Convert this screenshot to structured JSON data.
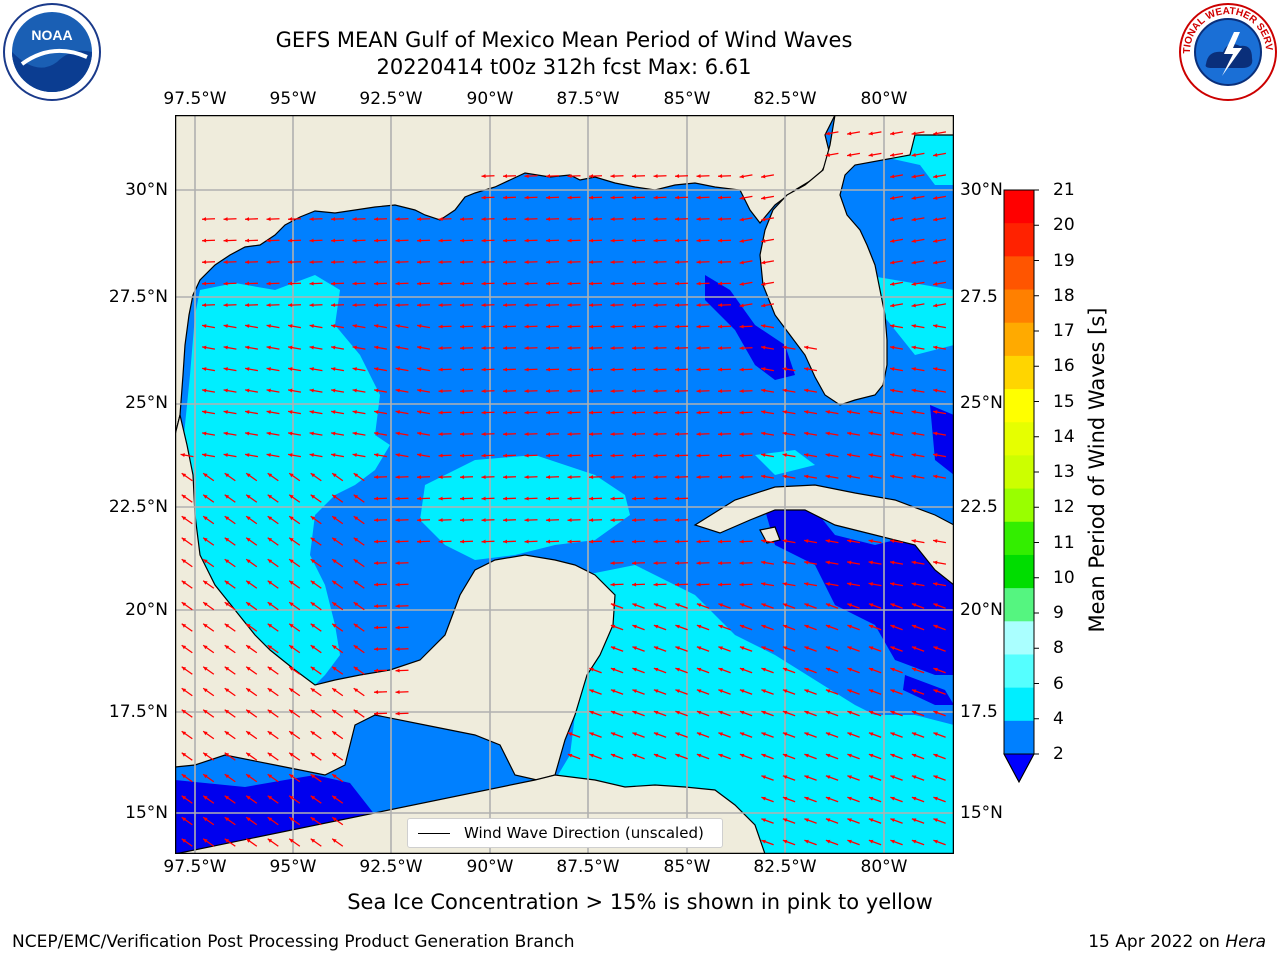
{
  "title": {
    "line1": "GEFS MEAN Gulf of Mexico Mean Period of Wind Waves",
    "line2": "20220414 t00z 312h fcst   Max: 6.61"
  },
  "logos": {
    "noaa": "NOAA",
    "nws": "NATIONAL WEATHER SERVICE"
  },
  "map": {
    "lon_ticks": [
      "97.5°W",
      "95°W",
      "92.5°W",
      "90°W",
      "87.5°W",
      "85°W",
      "82.5°W",
      "80°W"
    ],
    "lat_ticks_left": [
      "30°N",
      "27.5°N",
      "25°N",
      "22.5°N",
      "20°N",
      "17.5°N",
      "15°N"
    ],
    "lat_ticks_right": [
      "30°N",
      "27.5",
      "25°N",
      "22.5",
      "20°N",
      "17.5",
      "15°N"
    ],
    "land_color": "#efecdc",
    "ocean_color": "#0080ff",
    "vector_color": "#ff0000"
  },
  "legend": {
    "label": "Wind Wave Direction (unscaled)"
  },
  "colorbar": {
    "label": "Mean Period of Wind Waves [s]",
    "ticks": [
      "21",
      "20",
      "19",
      "18",
      "17",
      "16",
      "15",
      "14",
      "13",
      "12",
      "11",
      "10",
      "9",
      "8",
      "6",
      "4",
      "2"
    ],
    "colors": [
      "#ff0000",
      "#ff2200",
      "#ff5500",
      "#ff8000",
      "#ffaa00",
      "#ffd500",
      "#ffff00",
      "#e6ff00",
      "#ccff00",
      "#99ff00",
      "#33ee00",
      "#00dd00",
      "#55f580",
      "#aaffff",
      "#55ffff",
      "#00eeff",
      "#0080ff"
    ],
    "extend_color": "#0000ff"
  },
  "caption": "Sea Ice Concentration > 15% is shown in pink to yellow",
  "footer": {
    "left": "NCEP/EMC/Verification Post Processing Product Generation Branch",
    "date": "15 Apr 2022 on ",
    "machine": "Hera"
  }
}
